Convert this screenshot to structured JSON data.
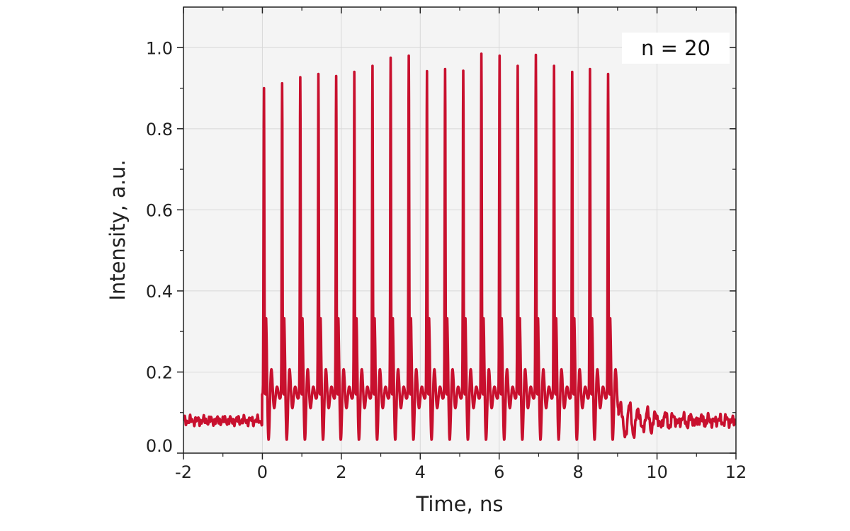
{
  "chart_data": {
    "type": "line",
    "title": "",
    "xlabel": "Time, ns",
    "ylabel": "Intensity, a.u.",
    "xlim": [
      -2,
      12
    ],
    "ylim": [
      0,
      1.1
    ],
    "xticks": [
      -2,
      0,
      2,
      4,
      6,
      8,
      10,
      12
    ],
    "xtick_labels": [
      "-2",
      "0",
      "2",
      "4",
      "6",
      "8",
      "10",
      "12"
    ],
    "yticks": [
      0,
      0.2,
      0.4,
      0.6,
      0.8,
      1.0
    ],
    "ytick_labels": [
      "0.0",
      "0.2",
      "0.4",
      "0.6",
      "0.8",
      "1.0"
    ],
    "grid": true,
    "annotation": "n = 20",
    "line_color": "#c8102e",
    "plot_background": "#f4f4f4",
    "baseline_level": 0.08,
    "pulse_train": {
      "count": 20,
      "peak_times": [
        0.04,
        0.5,
        0.96,
        1.42,
        1.87,
        2.33,
        2.79,
        3.25,
        3.71,
        4.17,
        4.63,
        5.09,
        5.55,
        6.01,
        6.47,
        6.93,
        7.39,
        7.85,
        8.3,
        8.76
      ],
      "peak_values": [
        0.915,
        0.927,
        0.942,
        0.95,
        0.945,
        0.955,
        0.97,
        0.99,
        0.995,
        0.957,
        0.962,
        0.958,
        1.0,
        0.995,
        0.97,
        0.997,
        0.97,
        0.955,
        0.962,
        0.95
      ]
    },
    "series": [
      {
        "x": [
          -2.0,
          -1.75,
          -1.5,
          -1.25,
          -1.0,
          -0.75,
          -0.5,
          -0.25,
          0.0,
          0.04,
          0.14,
          0.24,
          0.34,
          0.42,
          0.5,
          0.6,
          0.7,
          0.8,
          0.88,
          0.96,
          9.0,
          9.25,
          9.5,
          9.75,
          10.0,
          10.5,
          11.0,
          11.5,
          12.0
        ],
        "y": [
          0.08,
          0.085,
          0.09,
          0.075,
          0.09,
          0.085,
          0.08,
          0.09,
          0.08,
          0.915,
          0.0,
          0.29,
          0.0,
          0.18,
          0.927,
          0.0,
          0.29,
          0.0,
          0.18,
          0.942,
          0.14,
          0.11,
          0.09,
          0.08,
          0.1,
          0.085,
          0.09,
          0.1,
          0.08
        ]
      }
    ]
  }
}
